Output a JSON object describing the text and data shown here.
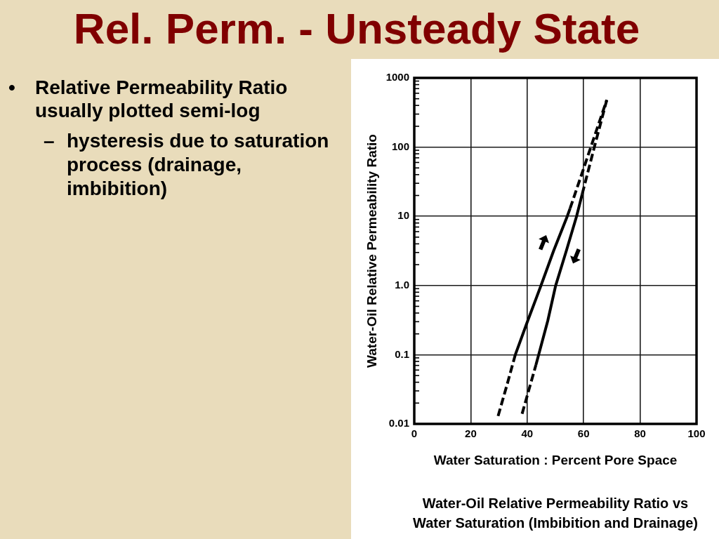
{
  "chart_data": {
    "type": "line",
    "title": "Rel. Perm. - Unsteady State",
    "xlabel": "Water Saturation : Percent Pore Space",
    "ylabel": "Water-Oil Relative Permeability Ratio",
    "annotations": [
      "•",
      "Relative Permeability Ratio usually plotted semi-log",
      "–",
      "hysteresis due to saturation process (drainage, imbibition)",
      "Water-Oil Relative Permeability Ratio vs Water Saturation (Imbibition and Drainage)"
    ],
    "log": "y",
    "grid": true,
    "xlim": [
      0,
      100
    ],
    "xticks": [
      0,
      20,
      40,
      60,
      80,
      100
    ],
    "ylim": [
      0.01,
      1000
    ],
    "yticks": [
      0.01,
      {
        "value": 0.02,
        "label": null
      },
      {
        "value": 0.03,
        "label": null
      },
      {
        "value": 0.04,
        "label": null
      },
      {
        "value": 0.05,
        "label": null
      },
      {
        "value": 0.06,
        "label": null
      },
      {
        "value": 0.07,
        "label": null
      },
      {
        "value": 0.08,
        "label": null
      },
      {
        "value": 0.09,
        "label": null
      },
      0.1,
      {
        "value": 0.2,
        "label": null
      },
      {
        "value": 0.3,
        "label": null
      },
      {
        "value": 0.4,
        "label": null
      },
      {
        "value": 0.5,
        "label": null
      },
      {
        "value": 0.6,
        "label": null
      },
      {
        "value": 0.7,
        "label": null
      },
      {
        "value": 0.8,
        "label": null
      },
      {
        "value": 0.9,
        "label": null
      },
      {
        "value": 1,
        "label": "1.0"
      },
      {
        "value": 2,
        "label": null
      },
      {
        "value": 3,
        "label": null
      },
      {
        "value": 4,
        "label": null
      },
      {
        "value": 5,
        "label": null
      },
      {
        "value": 6,
        "label": null
      },
      {
        "value": 7,
        "label": null
      },
      {
        "value": 8,
        "label": null
      },
      {
        "value": 9,
        "label": null
      },
      10,
      {
        "value": 20,
        "label": null
      },
      {
        "value": 30,
        "label": null
      },
      {
        "value": 40,
        "label": null
      },
      {
        "value": 50,
        "label": null
      },
      {
        "value": 60,
        "label": null
      },
      {
        "value": 70,
        "label": null
      },
      {
        "value": 80,
        "label": null
      },
      {
        "value": 90,
        "label": null
      },
      100,
      {
        "value": 200,
        "label": null
      },
      {
        "value": 300,
        "label": null
      },
      {
        "value": 400,
        "label": null
      },
      {
        "value": 500,
        "label": null
      },
      {
        "value": 600,
        "label": null
      },
      {
        "value": 700,
        "label": null
      },
      {
        "value": 800,
        "label": null
      },
      {
        "value": 900,
        "label": null
      },
      1000
    ],
    "series": [
      {
        "color": "#000000",
        "line_style": "dashed",
        "x": [
          29.7,
          32.8,
          35.8
        ],
        "values": [
          0.013,
          0.036,
          0.1
        ]
      },
      {
        "color": "#000000",
        "line_style": "solid",
        "x": [
          35.8,
          40.2,
          44.9,
          49.4,
          54.2,
          55.2
        ],
        "values": [
          0.1,
          0.31,
          1,
          3.2,
          10,
          13
        ]
      },
      {
        "color": "#000000",
        "line_style": "dashed",
        "x": [
          55.2,
          60,
          63.2,
          68.2
        ],
        "values": [
          13,
          49,
          120,
          480
        ]
      },
      {
        "color": "#000000",
        "line_style": "dashed",
        "x": [
          38.2,
          43.1
        ],
        "values": [
          0.014,
          0.071
        ]
      },
      {
        "color": "#000000",
        "line_style": "solid",
        "x": [
          43.1,
          47.3,
          50.1,
          53.9,
          57.5,
          59.5
        ],
        "values": [
          0.071,
          0.31,
          1,
          3.2,
          10,
          21
        ]
      },
      {
        "color": "#000000",
        "line_style": "dashed",
        "x": [
          59.5,
          63.8,
          68.2
        ],
        "values": [
          21,
          100,
          480
        ]
      }
    ]
  }
}
